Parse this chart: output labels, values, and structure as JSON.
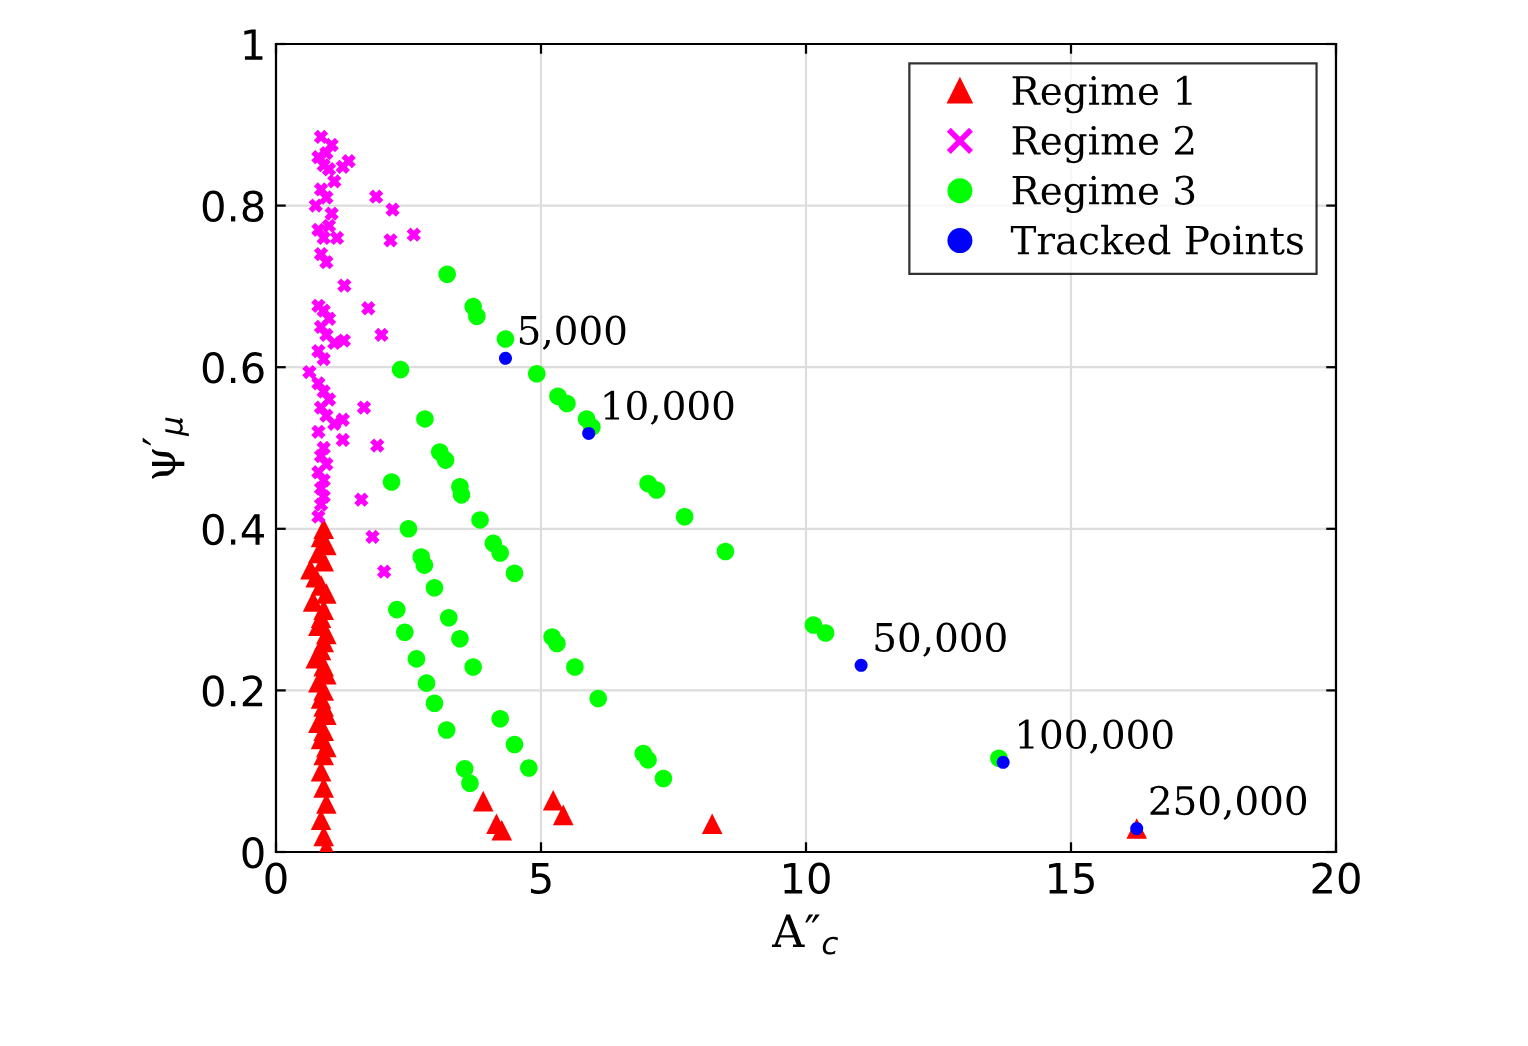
{
  "chart_data": {
    "type": "scatter",
    "xlabel": "A″$_{c}$",
    "ylabel": "ψ′$_{μ}$",
    "xlim": [
      0,
      20
    ],
    "ylim": [
      0,
      1
    ],
    "xticks": [
      0,
      5,
      10,
      15,
      20
    ],
    "yticks": [
      0,
      0.2,
      0.4,
      0.6,
      0.8,
      1
    ],
    "grid": true,
    "legend": "top right",
    "annotations": [
      {
        "text": "5,000",
        "x": 4.33,
        "y": 0.611
      },
      {
        "text": "10,000",
        "x": 5.9,
        "y": 0.518
      },
      {
        "text": "50,000",
        "x": 11.04,
        "y": 0.231
      },
      {
        "text": "100,000",
        "x": 13.72,
        "y": 0.111
      },
      {
        "text": "250,000",
        "x": 16.24,
        "y": 0.029
      }
    ],
    "series": [
      {
        "name": "Regime 1",
        "color": "#ff0000",
        "marker": "triangle",
        "x": [
          0.9,
          0.85,
          0.95,
          0.8,
          0.9,
          0.65,
          0.75,
          0.85,
          0.95,
          0.7,
          0.9,
          0.85,
          0.8,
          0.95,
          0.9,
          0.85,
          0.75,
          0.9,
          0.95,
          0.8,
          0.9,
          0.85,
          0.9,
          0.95,
          0.8,
          0.9,
          0.85,
          0.95,
          0.9,
          0.85,
          0.9,
          0.95,
          0.85,
          0.9,
          0.95,
          3.91,
          4.16,
          4.26,
          5.23,
          5.42,
          8.23,
          16.24
        ],
        "values": [
          0.4,
          0.39,
          0.38,
          0.37,
          0.36,
          0.35,
          0.34,
          0.33,
          0.32,
          0.31,
          0.3,
          0.29,
          0.28,
          0.27,
          0.26,
          0.25,
          0.24,
          0.23,
          0.22,
          0.21,
          0.2,
          0.19,
          0.18,
          0.17,
          0.16,
          0.15,
          0.14,
          0.13,
          0.12,
          0.1,
          0.08,
          0.06,
          0.04,
          0.02,
          0.005,
          0.063,
          0.035,
          0.027,
          0.064,
          0.046,
          0.035,
          0.029
        ]
      },
      {
        "name": "Regime 2",
        "color": "#ff00ff",
        "marker": "cross",
        "x": [
          0.85,
          0.95,
          1.05,
          0.8,
          0.9,
          1.0,
          1.1,
          0.85,
          0.75,
          0.95,
          1.05,
          0.8,
          0.9,
          1.0,
          1.15,
          0.85,
          0.95,
          1.26,
          1.37,
          1.89,
          2.2,
          2.16,
          2.6,
          0.8,
          0.9,
          1.0,
          0.85,
          0.95,
          1.1,
          0.8,
          0.9,
          1.29,
          1.74,
          1.99,
          1.28,
          0.63,
          0.8,
          0.9,
          1.0,
          0.85,
          0.95,
          1.1,
          0.8,
          0.9,
          0.85,
          0.95,
          0.8,
          0.9,
          0.85,
          0.9,
          0.85,
          0.8,
          1.66,
          1.91,
          1.26,
          1.26,
          1.61,
          1.82,
          2.04
        ],
        "values": [
          0.885,
          0.865,
          0.875,
          0.86,
          0.85,
          0.845,
          0.83,
          0.82,
          0.8,
          0.81,
          0.79,
          0.77,
          0.76,
          0.775,
          0.76,
          0.74,
          0.73,
          0.848,
          0.855,
          0.811,
          0.795,
          0.757,
          0.764,
          0.676,
          0.67,
          0.66,
          0.65,
          0.64,
          0.63,
          0.62,
          0.61,
          0.701,
          0.673,
          0.64,
          0.633,
          0.594,
          0.58,
          0.57,
          0.56,
          0.55,
          0.54,
          0.53,
          0.52,
          0.5,
          0.49,
          0.48,
          0.47,
          0.46,
          0.45,
          0.44,
          0.43,
          0.415,
          0.55,
          0.503,
          0.535,
          0.51,
          0.436,
          0.39,
          0.347
        ]
      },
      {
        "name": "Regime 3",
        "color": "#00ff00",
        "marker": "circle",
        "x": [
          3.23,
          3.72,
          3.79,
          4.33,
          4.92,
          5.32,
          5.49,
          5.86,
          5.96,
          7.02,
          7.18,
          7.71,
          8.48,
          10.14,
          10.37,
          13.64,
          2.35,
          2.81,
          3.09,
          3.2,
          3.47,
          3.5,
          3.85,
          4.1,
          4.23,
          4.5,
          5.21,
          5.3,
          5.64,
          6.08,
          6.93,
          7.02,
          7.31,
          2.18,
          2.5,
          2.74,
          2.8,
          2.99,
          3.26,
          3.47,
          3.72,
          4.23,
          4.5,
          4.77,
          2.28,
          2.43,
          2.65,
          2.84,
          2.99,
          3.22,
          3.56,
          3.66
        ],
        "values": [
          0.715,
          0.675,
          0.663,
          0.635,
          0.592,
          0.564,
          0.555,
          0.536,
          0.526,
          0.456,
          0.448,
          0.415,
          0.372,
          0.281,
          0.271,
          0.116,
          0.597,
          0.536,
          0.495,
          0.485,
          0.452,
          0.442,
          0.411,
          0.382,
          0.37,
          0.345,
          0.266,
          0.258,
          0.229,
          0.19,
          0.122,
          0.114,
          0.091,
          0.458,
          0.4,
          0.365,
          0.355,
          0.327,
          0.29,
          0.264,
          0.229,
          0.165,
          0.133,
          0.104,
          0.3,
          0.272,
          0.239,
          0.209,
          0.184,
          0.151,
          0.103,
          0.085
        ]
      },
      {
        "name": "Tracked Points",
        "color": "#0000ff",
        "marker": "circle",
        "x": [
          4.33,
          5.9,
          11.04,
          13.72,
          16.24
        ],
        "values": [
          0.611,
          0.518,
          0.231,
          0.111,
          0.029
        ]
      }
    ]
  }
}
